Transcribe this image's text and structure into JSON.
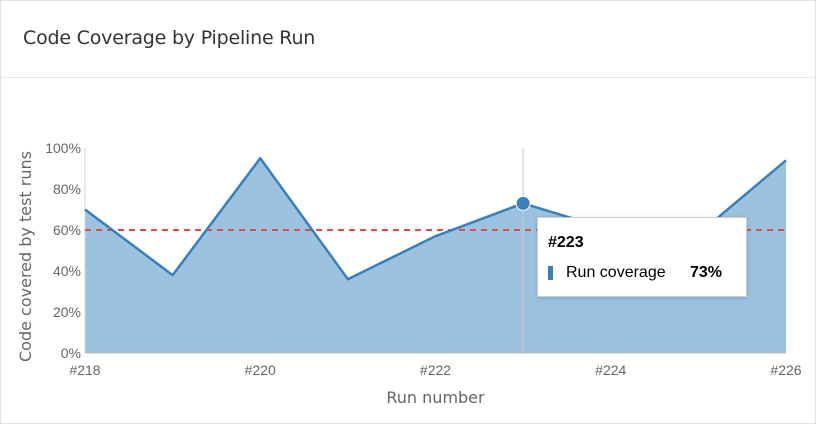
{
  "card": {
    "title": "Code Coverage by Pipeline Run"
  },
  "chart_data": {
    "type": "area",
    "x": [
      "#218",
      "#219",
      "#220",
      "#221",
      "#222",
      "#223",
      "#224",
      "#225",
      "#226"
    ],
    "x_tick_labels": [
      "#218",
      "#220",
      "#222",
      "#224",
      "#226"
    ],
    "series": [
      {
        "name": "Run coverage",
        "values": [
          70,
          38,
          95,
          36,
          57,
          73,
          60,
          58,
          94
        ],
        "color": "#3a7fba",
        "fill": "#9bc2df"
      }
    ],
    "threshold": {
      "value": 60,
      "color": "#e8474b"
    },
    "xlabel": "Run number",
    "ylabel": "Code covered by test runs",
    "ylim": [
      0,
      100
    ],
    "y_ticks": [
      "0%",
      "20%",
      "40%",
      "60%",
      "80%",
      "100%"
    ],
    "grid": false,
    "hover_index": 5
  },
  "tooltip": {
    "title": "#223",
    "series_label": "Run coverage",
    "value": "73%",
    "swatch_color": "#3a7fba"
  }
}
